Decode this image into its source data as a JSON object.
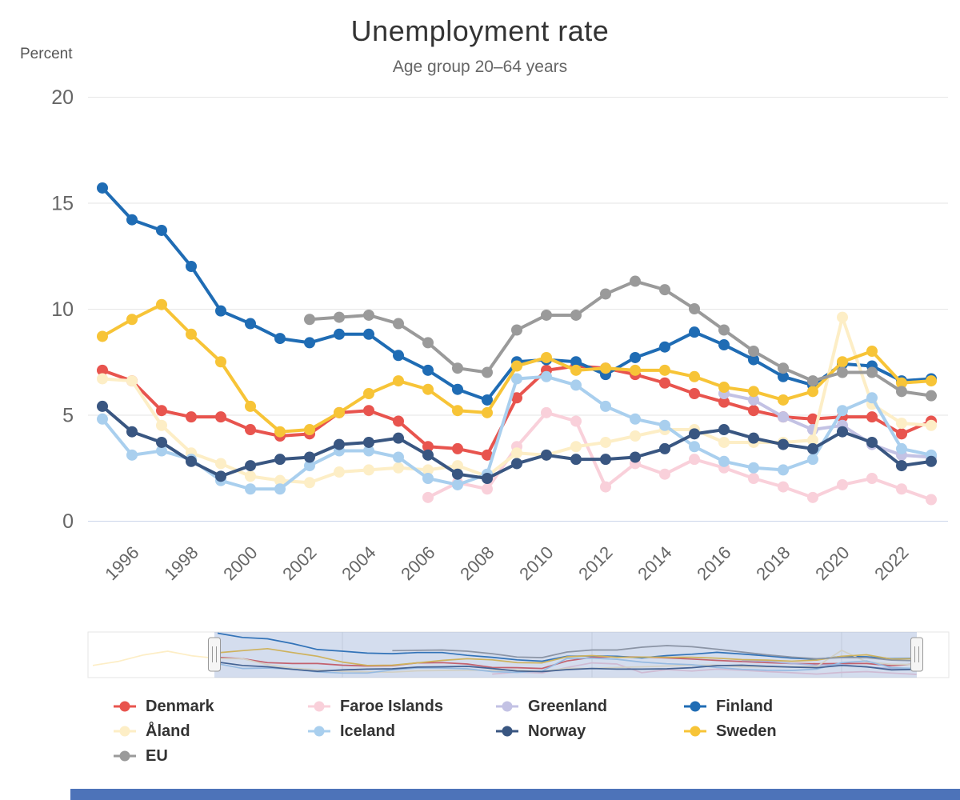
{
  "header": {
    "title": "Unemployment rate",
    "subtitle": "Age group 20–64 years",
    "y_axis_title": "Percent"
  },
  "chart_data": {
    "type": "line",
    "title": "Unemployment rate",
    "subtitle": "Age group 20–64 years",
    "ylabel": "Percent",
    "ylim": [
      0,
      20
    ],
    "y_ticks": [
      0,
      5,
      10,
      15,
      20
    ],
    "x_start_year": 1995,
    "x_end_year": 2023,
    "x_tick_labels": [
      "1996",
      "1998",
      "2000",
      "2002",
      "2004",
      "2006",
      "2008",
      "2010",
      "2012",
      "2014",
      "2016",
      "2018",
      "2020",
      "2022"
    ],
    "grid": true,
    "legend_position": "bottom-left",
    "series": [
      {
        "name": "Denmark",
        "color": "#e8544e",
        "start_year": 1995,
        "values": [
          7.1,
          6.6,
          5.2,
          4.9,
          4.9,
          4.3,
          4.0,
          4.1,
          5.1,
          5.2,
          4.7,
          3.5,
          3.4,
          3.1,
          5.8,
          7.1,
          7.3,
          7.2,
          6.9,
          6.5,
          6.0,
          5.6,
          5.2,
          4.9,
          4.8,
          4.9,
          4.9,
          4.1,
          4.7
        ]
      },
      {
        "name": "Faroe Islands",
        "color": "#f9d0da",
        "start_year": 2006,
        "values": [
          1.1,
          1.8,
          1.5,
          3.5,
          5.1,
          4.7,
          1.6,
          2.7,
          2.2,
          2.9,
          2.5,
          2.0,
          1.6,
          1.1,
          1.7,
          2.0,
          1.5,
          1.0
        ]
      },
      {
        "name": "Greenland",
        "color": "#c3c2e4",
        "start_year": 2016,
        "values": [
          6.0,
          5.7,
          4.9,
          4.3,
          4.5,
          3.6,
          3.1,
          3.0
        ]
      },
      {
        "name": "Finland",
        "color": "#1f6cb4",
        "start_year": 1995,
        "values": [
          15.7,
          14.2,
          13.7,
          12.0,
          9.9,
          9.3,
          8.6,
          8.4,
          8.8,
          8.8,
          7.8,
          7.1,
          6.2,
          5.7,
          7.5,
          7.6,
          7.5,
          6.9,
          7.7,
          8.2,
          8.9,
          8.3,
          7.6,
          6.8,
          6.4,
          7.4,
          7.3,
          6.6,
          6.7
        ]
      },
      {
        "name": "Åland",
        "color": "#fdeec6",
        "start_year": 1995,
        "values": [
          6.7,
          6.6,
          4.5,
          3.2,
          2.7,
          2.1,
          1.9,
          1.8,
          2.3,
          2.4,
          2.5,
          2.4,
          2.6,
          2.1,
          3.2,
          3.1,
          3.5,
          3.7,
          4.0,
          4.3,
          4.3,
          3.7,
          3.7,
          3.7,
          3.8,
          9.6,
          5.5,
          4.6,
          4.5
        ]
      },
      {
        "name": "Iceland",
        "color": "#a9cfee",
        "start_year": 1995,
        "values": [
          4.8,
          3.1,
          3.3,
          2.9,
          1.9,
          1.5,
          1.5,
          2.6,
          3.3,
          3.3,
          3.0,
          2.0,
          1.7,
          2.2,
          6.7,
          6.8,
          6.4,
          5.4,
          4.8,
          4.5,
          3.5,
          2.8,
          2.5,
          2.4,
          2.9,
          5.2,
          5.8,
          3.4,
          3.1
        ]
      },
      {
        "name": "Norway",
        "color": "#395681",
        "start_year": 1995,
        "values": [
          5.4,
          4.2,
          3.7,
          2.8,
          2.1,
          2.6,
          2.9,
          3.0,
          3.6,
          3.7,
          3.9,
          3.1,
          2.2,
          2.0,
          2.7,
          3.1,
          2.9,
          2.9,
          3.0,
          3.4,
          4.1,
          4.3,
          3.9,
          3.6,
          3.4,
          4.2,
          3.7,
          2.6,
          2.8
        ]
      },
      {
        "name": "Sweden",
        "color": "#f7c437",
        "start_year": 1995,
        "values": [
          8.7,
          9.5,
          10.2,
          8.8,
          7.5,
          5.4,
          4.2,
          4.3,
          5.1,
          6.0,
          6.6,
          6.2,
          5.2,
          5.1,
          7.3,
          7.7,
          7.1,
          7.2,
          7.1,
          7.1,
          6.8,
          6.3,
          6.1,
          5.7,
          6.1,
          7.5,
          8.0,
          6.5,
          6.6
        ]
      },
      {
        "name": "EU",
        "color": "#9a9a9a",
        "start_year": 2002,
        "values": [
          9.5,
          9.6,
          9.7,
          9.3,
          8.4,
          7.2,
          7.0,
          9.0,
          9.7,
          9.7,
          10.7,
          11.3,
          10.9,
          10.0,
          9.0,
          8.0,
          7.2,
          6.6,
          7.0,
          7.0,
          6.1,
          5.9
        ]
      }
    ],
    "navigator": {
      "aland_pre_start_year": 1990,
      "aland_pre_values": [
        4.2,
        5.6,
        7.9,
        9.3,
        7.6
      ],
      "gridline_years": [
        2000,
        2010,
        2020
      ]
    }
  },
  "colors": {
    "grid": "#e6e6e6",
    "axis_line": "#ccd6eb",
    "text_muted": "#666666",
    "text_dark": "#333333",
    "nav_mask": "rgba(102,133,194,0.28)",
    "nav_handle_border": "#999999",
    "nav_handle_fill": "#f5f5f5",
    "bottom_bar": "#4d73b9"
  }
}
